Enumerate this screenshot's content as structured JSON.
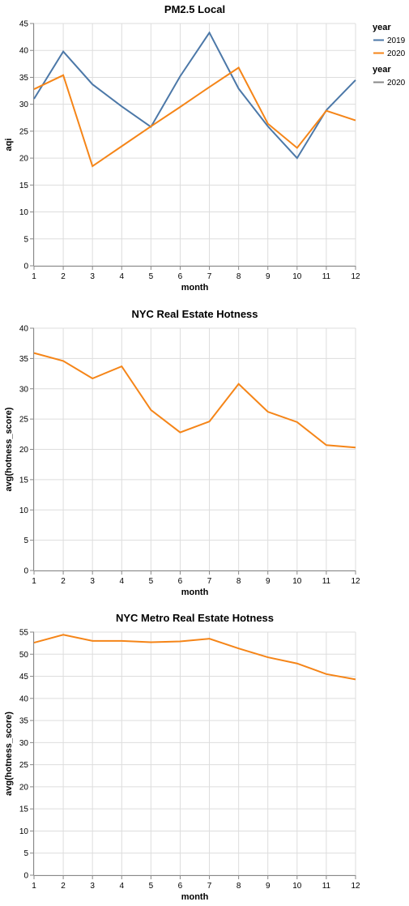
{
  "chart_data": [
    {
      "type": "line",
      "title": "PM2.5 Local",
      "xlabel": "month",
      "ylabel": "aqi",
      "x": [
        1,
        2,
        3,
        4,
        5,
        6,
        7,
        8,
        9,
        10,
        11,
        12
      ],
      "xlim": [
        1,
        12
      ],
      "ylim": [
        0,
        45
      ],
      "yticks": [
        0,
        5,
        10,
        15,
        20,
        25,
        30,
        35,
        40,
        45
      ],
      "grid": true,
      "legend_placement": "top-right",
      "series": [
        {
          "name": "2019",
          "color": "#4c78a8",
          "values": [
            31.0,
            39.8,
            33.7,
            29.6,
            25.8,
            35.2,
            43.3,
            32.9,
            25.9,
            20.0,
            28.9,
            34.5
          ]
        },
        {
          "name": "2020",
          "color": "#f58518",
          "values": [
            32.8,
            35.4,
            18.5,
            22.2,
            25.9,
            29.5,
            33.2,
            36.8,
            26.4,
            21.9,
            28.8,
            27.0
          ]
        }
      ],
      "legends": [
        {
          "title": "year",
          "entries": [
            {
              "label": "2019",
              "color": "#4c78a8"
            },
            {
              "label": "2020",
              "color": "#f58518"
            }
          ]
        },
        {
          "title": "year",
          "entries": [
            {
              "label": "2020",
              "color": "#888888"
            }
          ]
        }
      ]
    },
    {
      "type": "line",
      "title": "NYC Real Estate Hotness",
      "xlabel": "month",
      "ylabel": "avg(hotness_score)",
      "x": [
        1,
        2,
        3,
        4,
        5,
        6,
        7,
        8,
        9,
        10,
        11,
        12
      ],
      "xlim": [
        1,
        12
      ],
      "ylim": [
        0,
        40
      ],
      "yticks": [
        0,
        5,
        10,
        15,
        20,
        25,
        30,
        35,
        40
      ],
      "grid": true,
      "series": [
        {
          "name": "",
          "color": "#f58518",
          "values": [
            35.9,
            34.6,
            31.7,
            33.7,
            26.5,
            22.8,
            24.6,
            30.8,
            26.2,
            24.5,
            20.7,
            20.3
          ]
        }
      ]
    },
    {
      "type": "line",
      "title": "NYC Metro Real Estate Hotness",
      "xlabel": "month",
      "ylabel": "avg(hotness_score)",
      "x": [
        1,
        2,
        3,
        4,
        5,
        6,
        7,
        8,
        9,
        10,
        11,
        12
      ],
      "xlim": [
        1,
        12
      ],
      "ylim": [
        0,
        55
      ],
      "yticks": [
        0,
        5,
        10,
        15,
        20,
        25,
        30,
        35,
        40,
        45,
        50,
        55
      ],
      "grid": true,
      "series": [
        {
          "name": "",
          "color": "#f58518",
          "values": [
            52.6,
            54.4,
            53.0,
            53.0,
            52.7,
            52.9,
            53.5,
            51.3,
            49.3,
            47.9,
            45.5,
            44.3
          ]
        }
      ]
    }
  ]
}
